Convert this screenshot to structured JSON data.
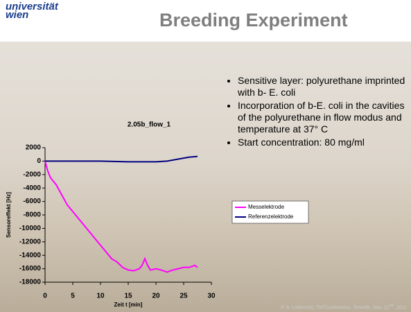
{
  "slide": {
    "logo": [
      "universität",
      "wien"
    ],
    "title": "Breeding Experiment",
    "bullets": [
      "Sensitive layer: polyurethane imprinted with b- E. coli",
      "Incorporation of b-E. coli in the cavities of the polyurethane in flow modus and temperature at 37° C",
      "Start concentration: 80 mg/ml"
    ],
    "footer": {
      "before": "P. A. Lieberzeit, TNTConference, Tenerife, Nov. 22",
      "sup": "nd",
      "after": ", 2011"
    }
  },
  "chart_data": {
    "type": "line",
    "title": "2.05b_flow_1",
    "x_label": "Zeit t [min]",
    "y_label": "Sensoreffekt [Hz]",
    "xlim": [
      0,
      30
    ],
    "xticks": [
      0,
      5,
      10,
      15,
      20,
      25,
      30
    ],
    "ylim": [
      -18000,
      2000
    ],
    "yticks": [
      2000,
      0,
      -2000,
      -4000,
      -6000,
      -8000,
      -10000,
      -12000,
      -14000,
      -16000,
      -18000
    ],
    "legend": "right",
    "series": [
      {
        "name": "Messelektrode",
        "color": "#ff00ff",
        "x": [
          0,
          0.5,
          1,
          2,
          3,
          4,
          5,
          6,
          7,
          8,
          9,
          10,
          11,
          12,
          13,
          14,
          15,
          16,
          17,
          17.5,
          18,
          18.5,
          19,
          20,
          21,
          22,
          23,
          24,
          25,
          26,
          27,
          27.5
        ],
        "values": [
          0,
          -1500,
          -2500,
          -3500,
          -5000,
          -6500,
          -7500,
          -8500,
          -9500,
          -10500,
          -11500,
          -12500,
          -13500,
          -14500,
          -15000,
          -15800,
          -16200,
          -16300,
          -16000,
          -15500,
          -14500,
          -15500,
          -16200,
          -16000,
          -16200,
          -16500,
          -16200,
          -16000,
          -15800,
          -15800,
          -15500,
          -15800
        ]
      },
      {
        "name": "Referenzelektrode",
        "color": "#000080",
        "x": [
          0,
          5,
          10,
          15,
          20,
          22,
          24,
          26,
          27.5
        ],
        "values": [
          0,
          0,
          0,
          -100,
          -100,
          0,
          300,
          600,
          700
        ]
      }
    ]
  }
}
